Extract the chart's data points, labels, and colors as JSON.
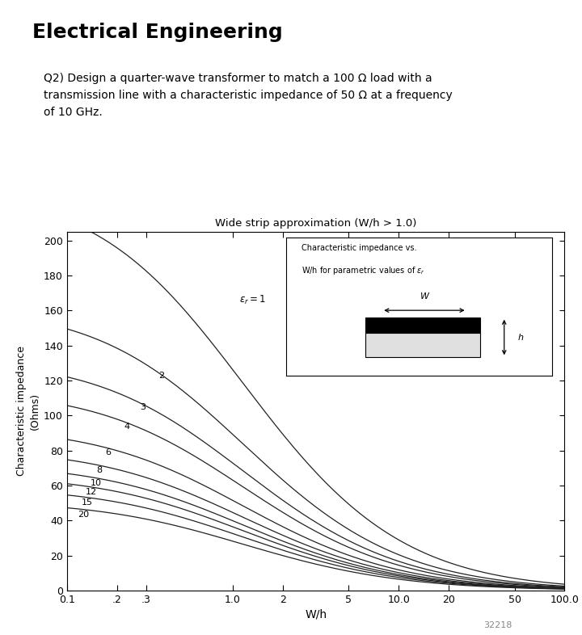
{
  "title": "Electrical Engineering",
  "question": "Q2) Design a quarter-wave transformer to match a 100 Ω load with a\ntransmission line with a characteristic impedance of 50 Ω at a frequency\nof 10 GHz.",
  "chart_title": "Wide strip approximation (W/h > 1.0)",
  "xlabel": "W/h",
  "ylabel_line1": "Characteristic impedance",
  "ylabel_line2": "(Ohms)",
  "er_values": [
    1,
    2,
    3,
    4,
    6,
    8,
    10,
    12,
    15,
    20
  ],
  "ylim": [
    0,
    205
  ],
  "xticks": [
    0.1,
    0.2,
    0.3,
    1.0,
    2,
    5,
    10.0,
    20,
    50,
    100.0
  ],
  "xtick_labels": [
    "0.1",
    ".2",
    ".3",
    "1.0",
    "2",
    "5",
    "10.0",
    "20",
    "50",
    "100.0"
  ],
  "yticks": [
    0,
    20,
    40,
    60,
    80,
    100,
    120,
    140,
    160,
    180,
    200
  ],
  "plot_bg": "#ffffff",
  "line_color": "#222222",
  "er_label_xpos_wh": [
    0.5,
    0.33,
    0.255,
    0.205,
    0.158,
    0.14,
    0.128,
    0.12,
    0.113,
    0.107
  ],
  "footer_text": "32218"
}
